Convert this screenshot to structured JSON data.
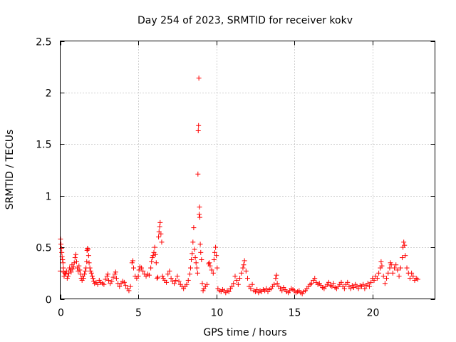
{
  "chart_data": {
    "type": "scatter",
    "title": "Day 254 of 2023, SRMTID for receiver kokv",
    "xlabel": "GPS time / hours",
    "ylabel": "SRMTID / TECUs",
    "xlim": [
      0,
      24
    ],
    "ylim": [
      0,
      2.5
    ],
    "xticks": [
      0,
      5,
      10,
      15,
      20
    ],
    "yticks": [
      0,
      0.5,
      1,
      1.5,
      2,
      2.5
    ],
    "grid": true,
    "marker": "+",
    "color": "#ff0000",
    "series": [
      {
        "name": "SRMTID",
        "points": [
          [
            0.0,
            0.27
          ],
          [
            0.02,
            0.58
          ],
          [
            0.05,
            0.53
          ],
          [
            0.08,
            0.49
          ],
          [
            0.1,
            0.45
          ],
          [
            0.12,
            0.41
          ],
          [
            0.15,
            0.38
          ],
          [
            0.18,
            0.35
          ],
          [
            0.2,
            0.3
          ],
          [
            0.22,
            0.26
          ],
          [
            0.25,
            0.22
          ],
          [
            0.3,
            0.25
          ],
          [
            0.35,
            0.24
          ],
          [
            0.4,
            0.27
          ],
          [
            0.45,
            0.2
          ],
          [
            0.5,
            0.22
          ],
          [
            0.55,
            0.25
          ],
          [
            0.6,
            0.3
          ],
          [
            0.65,
            0.28
          ],
          [
            0.7,
            0.26
          ],
          [
            0.75,
            0.33
          ],
          [
            0.8,
            0.29
          ],
          [
            0.85,
            0.31
          ],
          [
            0.9,
            0.35
          ],
          [
            0.95,
            0.4
          ],
          [
            1.0,
            0.43
          ],
          [
            1.05,
            0.36
          ],
          [
            1.1,
            0.3
          ],
          [
            1.15,
            0.27
          ],
          [
            1.2,
            0.32
          ],
          [
            1.25,
            0.28
          ],
          [
            1.3,
            0.24
          ],
          [
            1.35,
            0.2
          ],
          [
            1.4,
            0.18
          ],
          [
            1.45,
            0.22
          ],
          [
            1.5,
            0.2
          ],
          [
            1.55,
            0.24
          ],
          [
            1.6,
            0.27
          ],
          [
            1.65,
            0.3
          ],
          [
            1.7,
            0.36
          ],
          [
            1.72,
            0.47
          ],
          [
            1.75,
            0.49
          ],
          [
            1.78,
            0.48
          ],
          [
            1.82,
            0.42
          ],
          [
            1.85,
            0.35
          ],
          [
            1.9,
            0.3
          ],
          [
            1.95,
            0.27
          ],
          [
            2.0,
            0.25
          ],
          [
            2.05,
            0.22
          ],
          [
            2.1,
            0.2
          ],
          [
            2.15,
            0.17
          ],
          [
            2.2,
            0.15
          ],
          [
            2.3,
            0.16
          ],
          [
            2.4,
            0.14
          ],
          [
            2.5,
            0.18
          ],
          [
            2.6,
            0.16
          ],
          [
            2.7,
            0.15
          ],
          [
            2.8,
            0.14
          ],
          [
            2.9,
            0.19
          ],
          [
            3.0,
            0.22
          ],
          [
            3.05,
            0.24
          ],
          [
            3.1,
            0.18
          ],
          [
            3.2,
            0.15
          ],
          [
            3.3,
            0.17
          ],
          [
            3.4,
            0.21
          ],
          [
            3.5,
            0.24
          ],
          [
            3.55,
            0.26
          ],
          [
            3.6,
            0.2
          ],
          [
            3.7,
            0.15
          ],
          [
            3.8,
            0.12
          ],
          [
            3.9,
            0.15
          ],
          [
            4.0,
            0.17
          ],
          [
            4.1,
            0.16
          ],
          [
            4.2,
            0.13
          ],
          [
            4.3,
            0.1
          ],
          [
            4.4,
            0.08
          ],
          [
            4.5,
            0.12
          ],
          [
            4.6,
            0.35
          ],
          [
            4.65,
            0.37
          ],
          [
            4.7,
            0.3
          ],
          [
            4.8,
            0.22
          ],
          [
            4.9,
            0.2
          ],
          [
            5.0,
            0.22
          ],
          [
            5.05,
            0.28
          ],
          [
            5.1,
            0.31
          ],
          [
            5.2,
            0.3
          ],
          [
            5.3,
            0.27
          ],
          [
            5.4,
            0.24
          ],
          [
            5.5,
            0.22
          ],
          [
            5.6,
            0.24
          ],
          [
            5.7,
            0.23
          ],
          [
            5.8,
            0.3
          ],
          [
            5.85,
            0.36
          ],
          [
            5.9,
            0.4
          ],
          [
            5.95,
            0.42
          ],
          [
            6.0,
            0.45
          ],
          [
            6.05,
            0.5
          ],
          [
            6.1,
            0.43
          ],
          [
            6.15,
            0.35
          ],
          [
            6.2,
            0.2
          ],
          [
            6.25,
            0.21
          ],
          [
            6.3,
            0.6
          ],
          [
            6.33,
            0.65
          ],
          [
            6.37,
            0.7
          ],
          [
            6.4,
            0.74
          ],
          [
            6.45,
            0.63
          ],
          [
            6.5,
            0.55
          ],
          [
            6.55,
            0.22
          ],
          [
            6.6,
            0.2
          ],
          [
            6.7,
            0.18
          ],
          [
            6.8,
            0.16
          ],
          [
            6.9,
            0.24
          ],
          [
            7.0,
            0.27
          ],
          [
            7.1,
            0.2
          ],
          [
            7.2,
            0.17
          ],
          [
            7.3,
            0.15
          ],
          [
            7.4,
            0.18
          ],
          [
            7.5,
            0.22
          ],
          [
            7.6,
            0.17
          ],
          [
            7.7,
            0.14
          ],
          [
            7.8,
            0.12
          ],
          [
            7.9,
            0.1
          ],
          [
            8.0,
            0.12
          ],
          [
            8.1,
            0.14
          ],
          [
            8.2,
            0.18
          ],
          [
            8.3,
            0.24
          ],
          [
            8.35,
            0.3
          ],
          [
            8.4,
            0.38
          ],
          [
            8.45,
            0.44
          ],
          [
            8.5,
            0.55
          ],
          [
            8.55,
            0.69
          ],
          [
            8.6,
            0.48
          ],
          [
            8.65,
            0.4
          ],
          [
            8.7,
            0.35
          ],
          [
            8.75,
            0.3
          ],
          [
            8.8,
            0.25
          ],
          [
            8.82,
            1.21
          ],
          [
            8.84,
            1.63
          ],
          [
            8.86,
            1.68
          ],
          [
            8.88,
            2.14
          ],
          [
            8.9,
            0.82
          ],
          [
            8.92,
            0.89
          ],
          [
            8.94,
            0.79
          ],
          [
            8.97,
            0.53
          ],
          [
            9.0,
            0.45
          ],
          [
            9.05,
            0.38
          ],
          [
            9.1,
            0.15
          ],
          [
            9.15,
            0.08
          ],
          [
            9.2,
            0.1
          ],
          [
            9.3,
            0.12
          ],
          [
            9.4,
            0.14
          ],
          [
            9.5,
            0.34
          ],
          [
            9.55,
            0.35
          ],
          [
            9.6,
            0.32
          ],
          [
            9.7,
            0.28
          ],
          [
            9.8,
            0.25
          ],
          [
            9.85,
            0.38
          ],
          [
            9.9,
            0.45
          ],
          [
            9.95,
            0.5
          ],
          [
            10.0,
            0.42
          ],
          [
            10.05,
            0.3
          ],
          [
            10.1,
            0.1
          ],
          [
            10.2,
            0.08
          ],
          [
            10.3,
            0.07
          ],
          [
            10.4,
            0.09
          ],
          [
            10.5,
            0.08
          ],
          [
            10.6,
            0.06
          ],
          [
            10.7,
            0.08
          ],
          [
            10.8,
            0.07
          ],
          [
            10.9,
            0.1
          ],
          [
            11.0,
            0.12
          ],
          [
            11.1,
            0.15
          ],
          [
            11.2,
            0.22
          ],
          [
            11.3,
            0.18
          ],
          [
            11.4,
            0.14
          ],
          [
            11.5,
            0.2
          ],
          [
            11.6,
            0.25
          ],
          [
            11.7,
            0.3
          ],
          [
            11.75,
            0.33
          ],
          [
            11.8,
            0.37
          ],
          [
            11.9,
            0.27
          ],
          [
            12.0,
            0.2
          ],
          [
            12.1,
            0.12
          ],
          [
            12.2,
            0.1
          ],
          [
            12.3,
            0.14
          ],
          [
            12.4,
            0.08
          ],
          [
            12.5,
            0.07
          ],
          [
            12.6,
            0.09
          ],
          [
            12.7,
            0.06
          ],
          [
            12.8,
            0.08
          ],
          [
            12.9,
            0.07
          ],
          [
            13.0,
            0.09
          ],
          [
            13.1,
            0.08
          ],
          [
            13.2,
            0.1
          ],
          [
            13.3,
            0.07
          ],
          [
            13.4,
            0.09
          ],
          [
            13.5,
            0.1
          ],
          [
            13.6,
            0.12
          ],
          [
            13.7,
            0.14
          ],
          [
            13.8,
            0.2
          ],
          [
            13.85,
            0.23
          ],
          [
            13.9,
            0.15
          ],
          [
            14.0,
            0.12
          ],
          [
            14.1,
            0.1
          ],
          [
            14.2,
            0.08
          ],
          [
            14.3,
            0.11
          ],
          [
            14.4,
            0.09
          ],
          [
            14.5,
            0.07
          ],
          [
            14.6,
            0.06
          ],
          [
            14.7,
            0.08
          ],
          [
            14.8,
            0.1
          ],
          [
            14.9,
            0.09
          ],
          [
            15.0,
            0.08
          ],
          [
            15.1,
            0.06
          ],
          [
            15.2,
            0.07
          ],
          [
            15.3,
            0.08
          ],
          [
            15.4,
            0.06
          ],
          [
            15.5,
            0.05
          ],
          [
            15.6,
            0.07
          ],
          [
            15.7,
            0.08
          ],
          [
            15.8,
            0.1
          ],
          [
            15.9,
            0.12
          ],
          [
            16.0,
            0.14
          ],
          [
            16.1,
            0.15
          ],
          [
            16.2,
            0.18
          ],
          [
            16.3,
            0.2
          ],
          [
            16.4,
            0.16
          ],
          [
            16.5,
            0.14
          ],
          [
            16.6,
            0.15
          ],
          [
            16.7,
            0.13
          ],
          [
            16.8,
            0.11
          ],
          [
            16.9,
            0.1
          ],
          [
            17.0,
            0.12
          ],
          [
            17.1,
            0.14
          ],
          [
            17.2,
            0.16
          ],
          [
            17.3,
            0.13
          ],
          [
            17.4,
            0.12
          ],
          [
            17.5,
            0.15
          ],
          [
            17.6,
            0.11
          ],
          [
            17.7,
            0.1
          ],
          [
            17.8,
            0.12
          ],
          [
            17.9,
            0.14
          ],
          [
            18.0,
            0.16
          ],
          [
            18.1,
            0.12
          ],
          [
            18.2,
            0.1
          ],
          [
            18.3,
            0.14
          ],
          [
            18.4,
            0.16
          ],
          [
            18.5,
            0.12
          ],
          [
            18.6,
            0.1
          ],
          [
            18.7,
            0.13
          ],
          [
            18.8,
            0.11
          ],
          [
            18.9,
            0.14
          ],
          [
            19.0,
            0.12
          ],
          [
            19.1,
            0.1
          ],
          [
            19.2,
            0.13
          ],
          [
            19.3,
            0.12
          ],
          [
            19.4,
            0.14
          ],
          [
            19.5,
            0.1
          ],
          [
            19.6,
            0.13
          ],
          [
            19.7,
            0.15
          ],
          [
            19.8,
            0.12
          ],
          [
            19.9,
            0.16
          ],
          [
            20.0,
            0.2
          ],
          [
            20.1,
            0.18
          ],
          [
            20.2,
            0.22
          ],
          [
            20.3,
            0.2
          ],
          [
            20.4,
            0.25
          ],
          [
            20.5,
            0.3
          ],
          [
            20.55,
            0.36
          ],
          [
            20.6,
            0.32
          ],
          [
            20.7,
            0.22
          ],
          [
            20.8,
            0.15
          ],
          [
            20.9,
            0.2
          ],
          [
            21.0,
            0.25
          ],
          [
            21.1,
            0.3
          ],
          [
            21.15,
            0.35
          ],
          [
            21.2,
            0.33
          ],
          [
            21.3,
            0.25
          ],
          [
            21.4,
            0.3
          ],
          [
            21.5,
            0.33
          ],
          [
            21.6,
            0.28
          ],
          [
            21.7,
            0.22
          ],
          [
            21.8,
            0.3
          ],
          [
            21.9,
            0.4
          ],
          [
            21.95,
            0.5
          ],
          [
            22.0,
            0.55
          ],
          [
            22.05,
            0.52
          ],
          [
            22.1,
            0.42
          ],
          [
            22.2,
            0.3
          ],
          [
            22.3,
            0.25
          ],
          [
            22.4,
            0.2
          ],
          [
            22.5,
            0.25
          ],
          [
            22.6,
            0.22
          ],
          [
            22.7,
            0.18
          ],
          [
            22.8,
            0.2
          ],
          [
            22.9,
            0.19
          ]
        ]
      }
    ]
  }
}
